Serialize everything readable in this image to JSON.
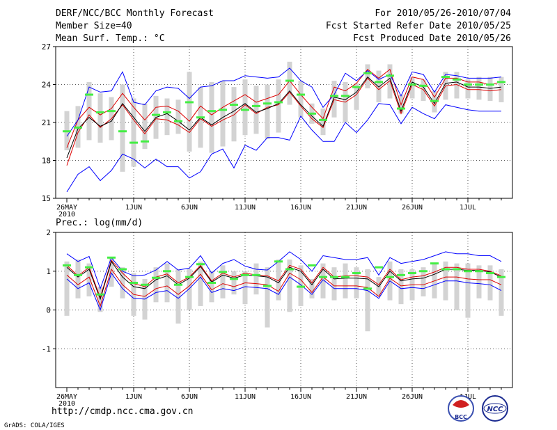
{
  "header": {
    "title": "DERF/NCC/BCC Monthly Forecast",
    "member_size": "Member Size=40",
    "variable": "Mean Surf. Temp.: °C",
    "period": "For 2010/05/26-2010/07/04",
    "start_ref": "Fcst Started Refer Date 2010/05/25",
    "produced": "Fcst Produced Date 2010/05/26"
  },
  "footer": {
    "url": "http://cmdp.ncc.cma.gov.cn",
    "credit": "GrADS: COLA/IGES",
    "logo_bcc": "BCC",
    "logo_ncc": "NCC"
  },
  "colors": {
    "max_min": "#0000ff",
    "spread": "#dd0000",
    "mean": "#000000",
    "median": "#44ee44",
    "box": "#d3d3d3",
    "grid": "#555555"
  },
  "chart_data": [
    {
      "type": "line",
      "title": "Mean Surf. Temp.: °C",
      "ylim": [
        15,
        27
      ],
      "yticks": [
        15,
        18,
        21,
        24,
        27
      ],
      "x_tick_labels": [
        "26MAY",
        "1JUN",
        "6JUN",
        "11JUN",
        "16JUN",
        "21JUN",
        "26JUN",
        "1JUL"
      ],
      "x_tick_days": [
        1,
        7,
        12,
        17,
        22,
        27,
        32,
        37
      ],
      "x_year_label": "2010",
      "days": 40,
      "grid": true,
      "series": [
        {
          "name": "max",
          "values": [
            15.5,
            16.9,
            17.5,
            16.4,
            17.2,
            18.5,
            18.1,
            17.4,
            18.1,
            17.5,
            17.5,
            16.6,
            17.1,
            18.5,
            18.9,
            17.4,
            19.2,
            18.8,
            19.8,
            19.8,
            19.6,
            21.5,
            20.4,
            19.5,
            19.5,
            21.0,
            20.2,
            21.2,
            22.5,
            22.4,
            20.9,
            22.2,
            21.7,
            21.3,
            22.4,
            22.2,
            22.0,
            21.9,
            21.9,
            21.9
          ]
        },
        {
          "name": "upper",
          "values": [
            17.6,
            20.2,
            21.6,
            20.6,
            21.3,
            22.4,
            21.2,
            20.1,
            21.3,
            21.2,
            20.8,
            20.2,
            21.3,
            20.7,
            21.2,
            21.6,
            22.4,
            21.7,
            22.2,
            22.4,
            23.4,
            22.3,
            21.3,
            20.6,
            22.8,
            22.6,
            23.2,
            24.5,
            23.6,
            24.3,
            21.7,
            24.0,
            23.6,
            22.3,
            23.9,
            24.0,
            23.6,
            23.6,
            23.5,
            23.6
          ]
        },
        {
          "name": "mean",
          "values": [
            18.2,
            20.5,
            21.4,
            20.7,
            21.1,
            22.5,
            21.4,
            20.3,
            21.4,
            21.7,
            21.1,
            20.4,
            21.4,
            20.8,
            21.4,
            21.9,
            22.5,
            21.8,
            22.1,
            22.5,
            23.5,
            22.4,
            21.5,
            20.7,
            23.0,
            22.8,
            23.4,
            24.6,
            23.8,
            24.5,
            21.9,
            24.2,
            23.8,
            22.5,
            24.1,
            24.2,
            23.8,
            23.8,
            23.7,
            23.8
          ]
        },
        {
          "name": "lower",
          "values": [
            19.0,
            21.2,
            22.2,
            21.6,
            22.1,
            23.3,
            22.2,
            21.2,
            22.2,
            22.3,
            21.9,
            21.1,
            22.3,
            21.6,
            22.2,
            22.7,
            23.2,
            22.6,
            22.9,
            23.2,
            24.3,
            23.2,
            22.2,
            21.3,
            23.8,
            23.5,
            24.1,
            25.2,
            24.5,
            25.2,
            22.4,
            24.6,
            24.4,
            23.0,
            24.5,
            24.5,
            24.2,
            24.2,
            24.0,
            24.2
          ]
        },
        {
          "name": "min",
          "values": [
            19.9,
            21.2,
            23.8,
            23.4,
            23.5,
            25.0,
            22.6,
            22.4,
            23.5,
            23.8,
            23.7,
            22.9,
            23.8,
            23.9,
            24.3,
            24.3,
            24.7,
            24.6,
            24.5,
            24.6,
            25.3,
            24.3,
            23.8,
            22.2,
            23.2,
            24.9,
            24.3,
            25.1,
            24.4,
            24.8,
            23.1,
            25.0,
            24.8,
            23.4,
            24.8,
            24.7,
            24.5,
            24.5,
            24.5,
            24.6
          ]
        }
      ],
      "median": [
        20.3,
        20.6,
        23.2,
        21.8,
        21.9,
        20.3,
        19.4,
        19.5,
        21.6,
        21.8,
        21.1,
        22.6,
        21.4,
        21.9,
        22.0,
        22.4,
        22.0,
        22.3,
        22.5,
        22.6,
        24.3,
        23.2,
        21.7,
        21.2,
        23.1,
        23.1,
        23.8,
        24.9,
        24.2,
        24.7,
        22.1,
        24.0,
        23.9,
        22.7,
        24.6,
        24.4,
        24.0,
        24.0,
        24.0,
        24.2
      ],
      "box_low": [
        18.8,
        19.0,
        19.6,
        19.4,
        19.6,
        17.1,
        17.5,
        18.9,
        19.7,
        20.0,
        20.1,
        18.7,
        19.0,
        18.6,
        19.1,
        19.5,
        20.0,
        20.1,
        19.7,
        20.2,
        22.4,
        21.4,
        20.9,
        20.0,
        21.4,
        21.0,
        22.0,
        23.7,
        22.6,
        22.9,
        21.7,
        22.9,
        22.7,
        21.8,
        22.8,
        22.9,
        22.9,
        22.8,
        22.7,
        22.6
      ],
      "box_high": [
        21.9,
        22.3,
        24.2,
        23.3,
        23.0,
        24.0,
        22.9,
        22.5,
        23.1,
        22.9,
        22.8,
        25.0,
        23.8,
        24.2,
        24.3,
        23.8,
        24.4,
        23.9,
        24.0,
        24.4,
        25.8,
        24.3,
        22.5,
        22.1,
        24.3,
        24.2,
        24.1,
        25.6,
        25.1,
        25.6,
        23.2,
        24.6,
        24.4,
        23.5,
        25.0,
        25.0,
        24.4,
        24.6,
        24.6,
        24.6
      ]
    },
    {
      "type": "line",
      "title": "Prec.: log(mm/d)",
      "ylim": [
        -2,
        2
      ],
      "yticks": [
        -1,
        0,
        1,
        2
      ],
      "x_tick_labels": [
        "26MAY",
        "1JUN",
        "6JUN",
        "11JUN",
        "16JUN",
        "21JUN",
        "26JUN",
        "1JUL"
      ],
      "x_tick_days": [
        1,
        7,
        12,
        17,
        22,
        27,
        32,
        37
      ],
      "x_year_label": "2010",
      "days": 40,
      "grid": true,
      "series": [
        {
          "name": "max",
          "values": [
            1.45,
            1.25,
            1.38,
            0.55,
            1.35,
            1.0,
            0.88,
            0.9,
            1.03,
            1.25,
            1.03,
            1.08,
            1.4,
            0.95,
            1.2,
            1.3,
            1.13,
            1.05,
            1.03,
            1.25,
            1.5,
            1.3,
            1.0,
            1.4,
            1.35,
            1.3,
            1.3,
            1.35,
            0.9,
            1.35,
            1.2,
            1.25,
            1.3,
            1.4,
            1.5,
            1.45,
            1.45,
            1.4,
            1.4,
            1.25
          ]
        },
        {
          "name": "upper",
          "values": [
            1.15,
            0.88,
            1.1,
            0.32,
            1.28,
            0.95,
            0.68,
            0.6,
            0.85,
            0.93,
            0.7,
            0.85,
            1.15,
            0.75,
            0.95,
            0.85,
            0.95,
            0.9,
            0.88,
            0.75,
            1.15,
            1.05,
            0.7,
            1.1,
            0.85,
            0.88,
            0.88,
            0.85,
            0.65,
            1.05,
            0.78,
            0.85,
            0.88,
            0.98,
            1.1,
            1.1,
            1.05,
            1.05,
            1.0,
            0.88
          ]
        },
        {
          "name": "mean",
          "values": [
            1.1,
            0.85,
            1.05,
            0.28,
            1.25,
            0.85,
            0.6,
            0.55,
            0.78,
            0.88,
            0.65,
            0.82,
            1.12,
            0.72,
            0.9,
            0.82,
            0.9,
            0.88,
            0.85,
            0.7,
            1.1,
            1.0,
            0.65,
            1.05,
            0.8,
            0.82,
            0.82,
            0.8,
            0.6,
            1.0,
            0.75,
            0.8,
            0.82,
            0.92,
            1.05,
            1.05,
            1.02,
            1.02,
            0.98,
            0.85
          ]
        },
        {
          "name": "lower",
          "values": [
            0.9,
            0.65,
            0.85,
            0.1,
            1.05,
            0.65,
            0.4,
            0.35,
            0.55,
            0.62,
            0.4,
            0.62,
            0.92,
            0.52,
            0.68,
            0.6,
            0.7,
            0.68,
            0.65,
            0.48,
            0.95,
            0.78,
            0.45,
            0.85,
            0.62,
            0.62,
            0.62,
            0.58,
            0.35,
            0.82,
            0.62,
            0.65,
            0.65,
            0.75,
            0.85,
            0.85,
            0.8,
            0.78,
            0.78,
            0.65
          ]
        },
        {
          "name": "min",
          "values": [
            0.8,
            0.55,
            0.7,
            0.0,
            0.95,
            0.55,
            0.3,
            0.28,
            0.45,
            0.5,
            0.3,
            0.55,
            0.85,
            0.45,
            0.55,
            0.5,
            0.6,
            0.58,
            0.55,
            0.4,
            0.85,
            0.65,
            0.4,
            0.78,
            0.55,
            0.55,
            0.55,
            0.5,
            0.3,
            0.75,
            0.55,
            0.58,
            0.55,
            0.65,
            0.75,
            0.75,
            0.7,
            0.68,
            0.65,
            0.5
          ]
        }
      ],
      "median": [
        1.15,
        0.9,
        1.1,
        0.4,
        1.35,
        1.05,
        0.7,
        0.65,
        0.83,
        1.0,
        0.65,
        0.85,
        1.18,
        0.7,
        0.98,
        0.8,
        0.9,
        0.9,
        0.62,
        1.25,
        1.05,
        0.6,
        1.15,
        0.85,
        0.85,
        0.85,
        0.95,
        0.55,
        1.1,
        0.85,
        0.9,
        0.95,
        1.0,
        1.2,
        1.05,
        1.05,
        1.0,
        1.0,
        0.95,
        0.85
      ],
      "box_low": [
        -0.15,
        0.3,
        0.35,
        -0.05,
        0.6,
        0.3,
        -0.15,
        -0.25,
        0.2,
        0.2,
        -0.35,
        0.0,
        0.1,
        0.2,
        0.3,
        0.4,
        0.15,
        0.4,
        -0.45,
        0.25,
        -0.05,
        0.1,
        0.3,
        0.3,
        0.25,
        0.3,
        0.3,
        -0.55,
        0.35,
        0.25,
        0.15,
        0.25,
        0.35,
        0.3,
        0.25,
        0.0,
        -0.2,
        0.3,
        0.25,
        -0.15
      ],
      "box_high": [
        1.25,
        1.3,
        1.2,
        0.6,
        1.35,
        1.1,
        0.95,
        0.8,
        1.1,
        1.2,
        1.05,
        1.05,
        1.25,
        1.0,
        1.15,
        1.0,
        1.0,
        1.2,
        1.1,
        1.3,
        1.3,
        1.15,
        0.8,
        1.2,
        1.1,
        1.2,
        1.1,
        1.05,
        0.85,
        1.25,
        1.05,
        1.05,
        1.1,
        1.2,
        1.25,
        1.2,
        1.2,
        1.15,
        1.15,
        1.05
      ]
    }
  ]
}
